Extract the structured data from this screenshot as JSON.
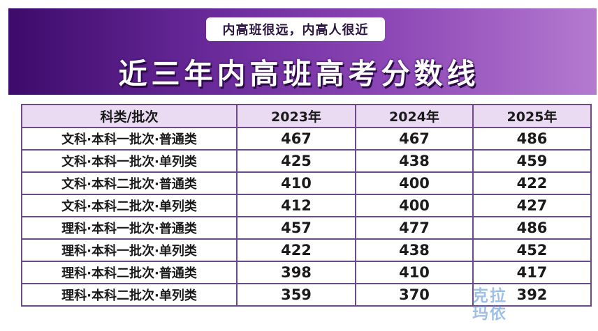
{
  "banner": {
    "tagline": "内高班很远，内高人很近",
    "title": "近三年内高班高考分数线"
  },
  "table": {
    "headers": [
      "科类/批次",
      "2023年",
      "2024年",
      "2025年"
    ],
    "rows": [
      {
        "category": "文科·本科一批次·普通类",
        "values": [
          "467",
          "467",
          "486"
        ]
      },
      {
        "category": "文科·本科一批次·单列类",
        "values": [
          "425",
          "438",
          "459"
        ]
      },
      {
        "category": "文科·本科二批次·普通类",
        "values": [
          "410",
          "400",
          "422"
        ]
      },
      {
        "category": "文科·本科二批次·单列类",
        "values": [
          "412",
          "400",
          "427"
        ]
      },
      {
        "category": "理科·本科一批次·普通类",
        "values": [
          "457",
          "477",
          "486"
        ]
      },
      {
        "category": "理科·本科一批次·单列类",
        "values": [
          "422",
          "438",
          "452"
        ]
      },
      {
        "category": "理科·本科二批次·普通类",
        "values": [
          "398",
          "410",
          "417"
        ]
      },
      {
        "category": "理科·本科二批次·单列类",
        "values": [
          "359",
          "370",
          "392"
        ]
      }
    ]
  },
  "watermark": {
    "line1": "克拉",
    "line2": "玛依"
  },
  "colors": {
    "banner_dark": "#3d0b6b",
    "banner_light": "#b47ad0",
    "header_bg": "#eadbf2",
    "border": "#6d4a85"
  }
}
